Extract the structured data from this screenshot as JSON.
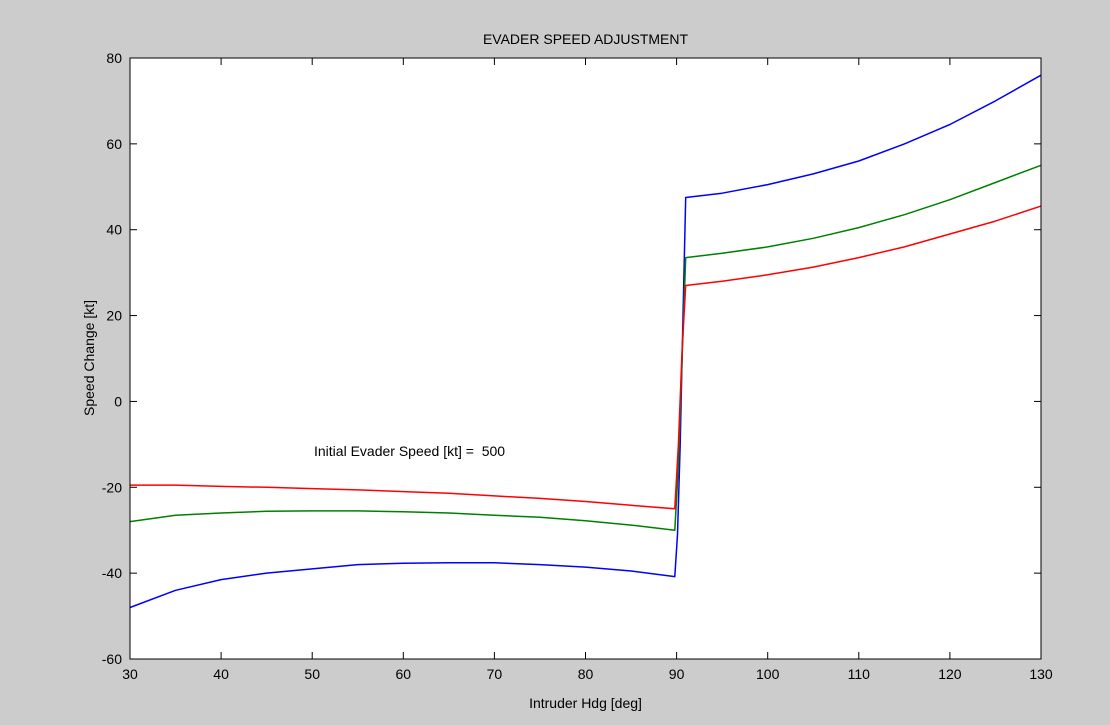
{
  "chart_data": {
    "type": "line",
    "title": "EVADER SPEED ADJUSTMENT",
    "xlabel": "Intruder Hdg [deg]",
    "ylabel": "Speed Change [kt]",
    "xlim": [
      30,
      130
    ],
    "ylim": [
      -60,
      80
    ],
    "xticks": [
      30,
      40,
      50,
      60,
      70,
      80,
      90,
      100,
      110,
      120,
      130
    ],
    "yticks": [
      -60,
      -40,
      -20,
      0,
      20,
      40,
      60,
      80
    ],
    "grid": false,
    "annotation": "Initial Evader Speed [kt] =  500",
    "colors": {
      "figure_bg": "#cccccc",
      "axes_bg": "#ffffff"
    },
    "series": [
      {
        "color": "#0000ff",
        "x": [
          30,
          35,
          40,
          45,
          50,
          55,
          60,
          65,
          70,
          75,
          80,
          85,
          89.8,
          90.1,
          90.4,
          90.7,
          91,
          95,
          100,
          105,
          110,
          115,
          120,
          125,
          130
        ],
        "y": [
          -48,
          -44,
          -41.5,
          -40,
          -39,
          -38,
          -37.7,
          -37.6,
          -37.6,
          -38,
          -38.6,
          -39.5,
          -40.8,
          -31,
          -10,
          20,
          47.5,
          48.5,
          50.5,
          53,
          56,
          60,
          64.5,
          70,
          76
        ]
      },
      {
        "color": "#008000",
        "x": [
          30,
          35,
          40,
          45,
          50,
          55,
          60,
          65,
          70,
          75,
          80,
          85,
          89.8,
          90.2,
          90.6,
          91,
          95,
          100,
          105,
          110,
          115,
          120,
          125,
          130
        ],
        "y": [
          -28,
          -26.5,
          -26,
          -25.6,
          -25.5,
          -25.5,
          -25.7,
          -26,
          -26.5,
          -27,
          -27.8,
          -28.8,
          -30,
          -15,
          10,
          33.5,
          34.5,
          36,
          38,
          40.5,
          43.5,
          47,
          51,
          55
        ]
      },
      {
        "color": "#ff0000",
        "x": [
          30,
          35,
          40,
          45,
          50,
          55,
          60,
          65,
          70,
          75,
          80,
          85,
          89.8,
          90.2,
          90.6,
          91,
          95,
          100,
          105,
          110,
          115,
          120,
          125,
          130
        ],
        "y": [
          -19.5,
          -19.5,
          -19.8,
          -20,
          -20.3,
          -20.6,
          -21,
          -21.4,
          -22,
          -22.6,
          -23.3,
          -24.2,
          -25,
          -10,
          12,
          27,
          28,
          29.5,
          31.3,
          33.5,
          36,
          39,
          42,
          45.5
        ]
      }
    ]
  }
}
